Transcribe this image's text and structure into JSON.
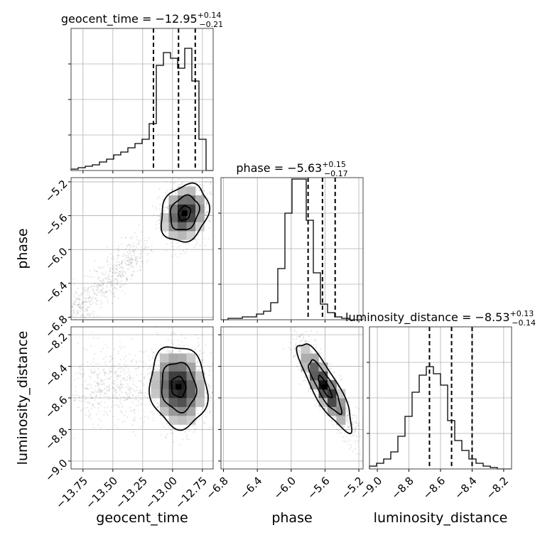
{
  "chart_data": {
    "type": "corner",
    "parameters": [
      {
        "name": "geocent_time",
        "median": "−12.95",
        "plus": "+0.14",
        "minus": "−0.21",
        "quantiles": [
          -13.16,
          -12.95,
          -12.81
        ],
        "range": [
          -13.85,
          -12.66
        ],
        "ticks": [
          -13.75,
          -13.5,
          -13.25,
          -13.0,
          -12.75
        ],
        "tick_labels": [
          "−13.75",
          "−13.50",
          "−13.25",
          "−13.00",
          "−12.75"
        ]
      },
      {
        "name": "phase",
        "median": "−5.63",
        "plus": "+0.15",
        "minus": "−0.17",
        "quantiles": [
          -5.8,
          -5.63,
          -5.48
        ],
        "range": [
          -6.83,
          -5.15
        ],
        "ticks": [
          -6.8,
          -6.4,
          -6.0,
          -5.6,
          -5.2
        ],
        "tick_labels": [
          "−6.8",
          "−6.4",
          "−6.0",
          "−5.6",
          "−5.2"
        ]
      },
      {
        "name": "luminosity_distance",
        "median": "−8.53",
        "plus": "+0.13",
        "minus": "−0.14",
        "quantiles": [
          -8.67,
          -8.53,
          -8.4
        ],
        "range": [
          -9.05,
          -8.15
        ],
        "ticks": [
          -9.0,
          -8.8,
          -8.6,
          -8.4,
          -8.2
        ],
        "tick_labels": [
          "−9.0",
          "−8.8",
          "−8.6",
          "−8.4",
          "−8.2"
        ]
      }
    ],
    "histograms": [
      {
        "parameter": "geocent_time",
        "counts": [
          0.01,
          0.02,
          0.03,
          0.04,
          0.06,
          0.08,
          0.11,
          0.13,
          0.16,
          0.19,
          0.22,
          0.33,
          0.74,
          0.83,
          0.79,
          0.72,
          0.86,
          0.63,
          0.22,
          0.0
        ]
      },
      {
        "parameter": "phase",
        "counts": [
          0.0,
          0.01,
          0.01,
          0.02,
          0.02,
          0.04,
          0.06,
          0.12,
          0.36,
          0.75,
          0.99,
          0.99,
          0.7,
          0.33,
          0.11,
          0.05,
          0.02,
          0.01,
          0.0,
          0.0
        ]
      },
      {
        "parameter": "luminosity_distance",
        "counts": [
          0.02,
          0.04,
          0.07,
          0.12,
          0.23,
          0.37,
          0.54,
          0.66,
          0.72,
          0.67,
          0.59,
          0.34,
          0.2,
          0.13,
          0.07,
          0.04,
          0.02,
          0.01,
          0.0,
          0.0
        ]
      }
    ],
    "panels_2d": [
      {
        "x": "geocent_time",
        "y": "phase",
        "center": [
          -12.9,
          -5.57
        ],
        "sigma": [
          0.1,
          0.17
        ],
        "rho": 0.2
      },
      {
        "x": "geocent_time",
        "y": "luminosity_distance",
        "center": [
          -12.95,
          -8.53
        ],
        "sigma": [
          0.12,
          0.13
        ],
        "rho": -0.1
      },
      {
        "x": "phase",
        "y": "luminosity_distance",
        "center": [
          -5.6,
          -8.53
        ],
        "sigma": [
          0.16,
          0.14
        ],
        "rho": -0.85
      }
    ]
  }
}
